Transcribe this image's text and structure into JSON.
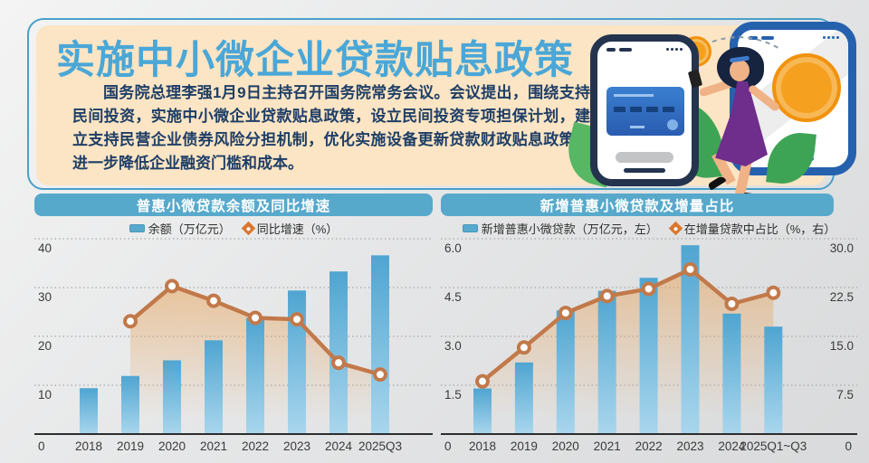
{
  "colors": {
    "accent_blue": "#57a9cc",
    "title_blue": "#4aa7d7",
    "panel_peach": "#fce5c4",
    "frame_blue": "#4aa0c8",
    "bar_top": "#4fa5d1",
    "bar_bottom": "#a9d6ed",
    "line_orange": "#c2794a",
    "area_orange": "#e7a45c",
    "grid_gray": "#a8a8a8",
    "axis_dark": "#2d2d2d",
    "body_navy": "#1e3e66"
  },
  "icons": {
    "bar_legend_swatch": "bar-swatch-icon",
    "line_legend_marker": "diamond-marker-icon",
    "phone": "smartphone-icon",
    "credit_card": "credit-card-icon",
    "coin": "coin-icon",
    "leaf": "leaf-icon",
    "woman": "woman-with-phone-illustration"
  },
  "header": {
    "title": "实施中小微企业贷款贴息政策",
    "body": "国务院总理李强1月9日主持召开国务院常务会议。会议提出，围绕支持民间投资，实施中小微企业贷款贴息政策，设立民间投资专项担保计划，建立支持民营企业债券风险分担机制，优化实施设备更新贷款财政贴息政策，进一步降低企业融资门槛和成本。"
  },
  "chart_data": [
    {
      "type": "bar+line",
      "title": "普惠小微贷款余额及同比增速",
      "categories": [
        "2018",
        "2019",
        "2020",
        "2021",
        "2022",
        "2023",
        "2024",
        "2025Q3"
      ],
      "series": [
        {
          "name": "余额（万亿元）",
          "type": "bar",
          "axis": "left",
          "values": [
            9.4,
            11.9,
            15.1,
            19.2,
            23.8,
            29.4,
            33.3,
            36.6
          ]
        },
        {
          "name": "同比增速（%）",
          "type": "line",
          "axis": "left",
          "values": [
            null,
            23.1,
            30.3,
            27.3,
            23.8,
            23.5,
            14.6,
            12.2
          ]
        }
      ],
      "ylim_left": [
        0,
        40
      ],
      "yticks_left": [
        {
          "v": 40,
          "label": "40"
        },
        {
          "v": 30,
          "label": "30"
        },
        {
          "v": 20,
          "label": "20"
        },
        {
          "v": 10,
          "label": "10"
        }
      ],
      "zero_left": "0",
      "grid": "dotted",
      "legend_position": "top"
    },
    {
      "type": "bar+line",
      "title": "新增普惠小微贷款及增量占比",
      "categories": [
        "2018",
        "2019",
        "2020",
        "2021",
        "2022",
        "2023",
        "2024",
        "2025Q1~Q3"
      ],
      "series": [
        {
          "name": "新增普惠小微贷款（万亿元，左）",
          "type": "bar",
          "axis": "left",
          "values": [
            1.4,
            2.2,
            3.8,
            4.4,
            4.8,
            5.8,
            3.7,
            3.3
          ]
        },
        {
          "name": "在增量贷款中占比（%，右）",
          "type": "line",
          "axis": "right",
          "values": [
            8.1,
            13.3,
            18.6,
            21.2,
            22.3,
            25.3,
            20.0,
            21.7
          ]
        }
      ],
      "ylim_left": [
        0,
        6
      ],
      "yticks_left": [
        {
          "v": 6,
          "label": "6.0"
        },
        {
          "v": 4.5,
          "label": "4.5"
        },
        {
          "v": 3,
          "label": "3.0"
        },
        {
          "v": 1.5,
          "label": "1.5"
        }
      ],
      "ylim_right": [
        0,
        30
      ],
      "yticks_right": [
        {
          "v": 30,
          "label": "30.0"
        },
        {
          "v": 22.5,
          "label": "22.5"
        },
        {
          "v": 15,
          "label": "15.0"
        },
        {
          "v": 7.5,
          "label": "7.5"
        }
      ],
      "zero_left": "0",
      "zero_right": "0",
      "grid": "dotted",
      "legend_position": "top"
    }
  ]
}
